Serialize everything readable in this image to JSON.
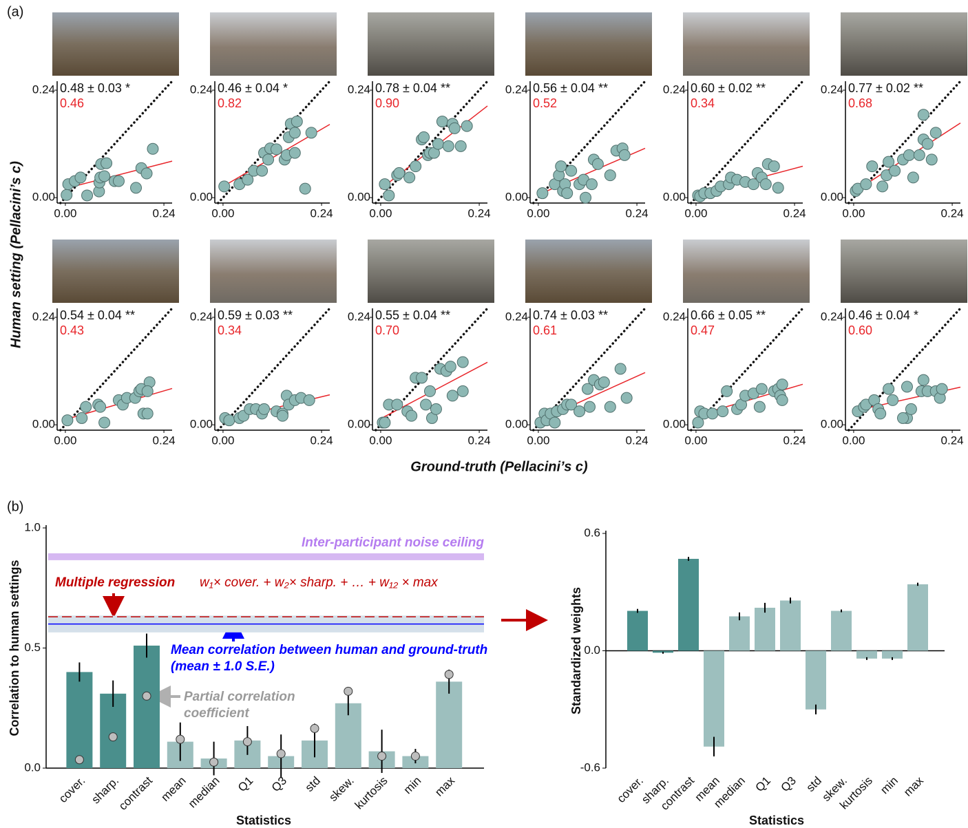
{
  "panel_labels": [
    "(a)",
    "(b)"
  ],
  "panel_a": {
    "ylabel": "Human setting (Pellacini’s c)",
    "xlabel": "Ground-truth (Pellacini’s c)"
  },
  "chart_data": [
    {
      "type": "scatter",
      "annotations": [
        "0.48 ± 0.03 *",
        "0.46"
      ],
      "color": "#8db8b4",
      "fit_color": "#e8252a",
      "x": [
        0.003,
        0.007,
        0.023,
        0.037,
        0.053,
        0.082,
        0.083,
        0.085,
        0.087,
        0.095,
        0.1,
        0.12,
        0.13,
        0.172,
        0.185,
        0.198,
        0.213
      ],
      "y": [
        0.006,
        0.03,
        0.037,
        0.045,
        0.005,
        0.014,
        0.034,
        0.045,
        0.075,
        0.048,
        0.077,
        0.037,
        0.037,
        0.022,
        0.066,
        0.054,
        0.109
      ],
      "xlim": [
        -0.02,
        0.26
      ],
      "ylim": [
        -0.012,
        0.26
      ],
      "xticks": [
        {
          "value": 0,
          "label": "0.00"
        },
        0.24
      ],
      "yticks": [
        {
          "value": 0,
          "label": "0.00"
        },
        0.24
      ]
    },
    {
      "type": "scatter",
      "annotations": [
        "0.46 ± 0.04 *",
        "0.82"
      ],
      "color": "#8db8b4",
      "fit_color": "#e8252a",
      "x": [
        0.003,
        0.04,
        0.06,
        0.075,
        0.095,
        0.1,
        0.11,
        0.115,
        0.13,
        0.15,
        0.155,
        0.16,
        0.165,
        0.175,
        0.175,
        0.18,
        0.2,
        0.215
      ],
      "y": [
        0.025,
        0.03,
        0.04,
        0.06,
        0.06,
        0.1,
        0.085,
        0.11,
        0.108,
        0.085,
        0.095,
        0.135,
        0.165,
        0.145,
        0.1,
        0.17,
        0.02,
        0.145
      ],
      "xlim": [
        -0.02,
        0.26
      ],
      "ylim": [
        -0.012,
        0.26
      ],
      "xticks": [
        {
          "value": 0,
          "label": "0.00"
        },
        0.24
      ],
      "yticks": [
        {
          "value": 0,
          "label": "0.00"
        },
        0.24
      ]
    },
    {
      "type": "scatter",
      "annotations": [
        "0.78 ± 0.04 **",
        "0.90"
      ],
      "color": "#8db8b4",
      "fit_color": "#e8252a",
      "x": [
        0.01,
        0.02,
        0.04,
        0.045,
        0.07,
        0.085,
        0.1,
        0.105,
        0.115,
        0.12,
        0.13,
        0.14,
        0.15,
        0.165,
        0.175,
        0.18,
        0.195,
        0.21
      ],
      "y": [
        0.03,
        0.005,
        0.05,
        0.055,
        0.045,
        0.07,
        0.13,
        0.135,
        0.095,
        0.1,
        0.1,
        0.12,
        0.17,
        0.115,
        0.165,
        0.155,
        0.115,
        0.16
      ],
      "xlim": [
        -0.02,
        0.26
      ],
      "ylim": [
        -0.012,
        0.26
      ],
      "xticks": [
        {
          "value": 0,
          "label": "0.00"
        },
        0.24
      ],
      "yticks": [
        {
          "value": 0,
          "label": "0.00"
        },
        0.24
      ]
    },
    {
      "type": "scatter",
      "annotations": [
        "0.56 ± 0.04 **",
        "0.52"
      ],
      "color": "#8db8b4",
      "fit_color": "#e8252a",
      "x": [
        0.01,
        0.04,
        0.05,
        0.055,
        0.06,
        0.065,
        0.07,
        0.08,
        0.1,
        0.11,
        0.115,
        0.13,
        0.135,
        0.145,
        0.175,
        0.19,
        0.205,
        0.21
      ],
      "y": [
        0.01,
        0.03,
        0.05,
        0.07,
        0.015,
        0.03,
        0.01,
        0.06,
        0.03,
        0.04,
        0.0,
        0.03,
        0.085,
        0.075,
        0.05,
        0.105,
        0.11,
        0.095
      ],
      "xlim": [
        -0.02,
        0.26
      ],
      "ylim": [
        -0.012,
        0.26
      ],
      "xticks": [
        {
          "value": 0,
          "label": "0.00"
        },
        0.24
      ],
      "yticks": [
        {
          "value": 0,
          "label": "0.00"
        },
        0.24
      ]
    },
    {
      "type": "scatter",
      "annotations": [
        "0.60 ± 0.02 **",
        "0.34"
      ],
      "color": "#8db8b4",
      "fit_color": "#e8252a",
      "x": [
        0.005,
        0.01,
        0.02,
        0.035,
        0.05,
        0.06,
        0.08,
        0.085,
        0.1,
        0.12,
        0.14,
        0.15,
        0.16,
        0.17,
        0.175,
        0.19,
        0.2
      ],
      "y": [
        0.005,
        0.003,
        0.01,
        0.01,
        0.015,
        0.025,
        0.03,
        0.045,
        0.04,
        0.035,
        0.03,
        0.055,
        0.045,
        0.03,
        0.075,
        0.07,
        0.022
      ],
      "xlim": [
        -0.02,
        0.26
      ],
      "ylim": [
        -0.012,
        0.26
      ],
      "xticks": [
        {
          "value": 0,
          "label": "0.00"
        },
        0.24
      ],
      "yticks": [
        {
          "value": 0,
          "label": "0.00"
        },
        0.24
      ]
    },
    {
      "type": "scatter",
      "annotations": [
        "0.77 ± 0.02 **",
        "0.68"
      ],
      "color": "#8db8b4",
      "fit_color": "#e8252a",
      "x": [
        0.005,
        0.01,
        0.03,
        0.045,
        0.07,
        0.08,
        0.085,
        0.1,
        0.12,
        0.135,
        0.145,
        0.16,
        0.17,
        0.17,
        0.18,
        0.2,
        0.19
      ],
      "y": [
        0.015,
        0.02,
        0.03,
        0.07,
        0.025,
        0.05,
        0.08,
        0.06,
        0.085,
        0.095,
        0.045,
        0.095,
        0.13,
        0.185,
        0.12,
        0.145,
        0.085
      ],
      "xlim": [
        -0.02,
        0.26
      ],
      "ylim": [
        -0.012,
        0.26
      ],
      "xticks": [
        {
          "value": 0,
          "label": "0.00"
        },
        0.24
      ],
      "yticks": [
        {
          "value": 0,
          "label": "0.00"
        },
        0.24
      ]
    },
    {
      "type": "scatter",
      "annotations": [
        "0.54 ± 0.04 **",
        "0.43"
      ],
      "color": "#8db8b4",
      "fit_color": "#e8252a",
      "x": [
        0.005,
        0.04,
        0.05,
        0.08,
        0.085,
        0.095,
        0.13,
        0.14,
        0.15,
        0.17,
        0.18,
        0.185,
        0.19,
        0.2,
        0.205,
        0.2
      ],
      "y": [
        0.01,
        0.015,
        0.04,
        0.045,
        0.04,
        0.005,
        0.055,
        0.045,
        0.06,
        0.06,
        0.075,
        0.08,
        0.025,
        0.025,
        0.095,
        0.075
      ],
      "xlim": [
        -0.02,
        0.26
      ],
      "ylim": [
        -0.012,
        0.26
      ],
      "xticks": [
        {
          "value": 0,
          "label": "0.00"
        },
        0.24
      ],
      "yticks": [
        {
          "value": 0,
          "label": "0.00"
        },
        0.24
      ]
    },
    {
      "type": "scatter",
      "annotations": [
        "0.59 ± 0.03 **",
        "0.34"
      ],
      "color": "#8db8b4",
      "fit_color": "#e8252a",
      "x": [
        0.005,
        0.015,
        0.04,
        0.05,
        0.065,
        0.08,
        0.095,
        0.1,
        0.13,
        0.145,
        0.155,
        0.16,
        0.175,
        0.19,
        0.21,
        0.145
      ],
      "y": [
        0.015,
        0.01,
        0.015,
        0.02,
        0.035,
        0.035,
        0.025,
        0.035,
        0.03,
        0.025,
        0.065,
        0.045,
        0.055,
        0.06,
        0.055,
        0.02
      ],
      "xlim": [
        -0.02,
        0.26
      ],
      "ylim": [
        -0.012,
        0.26
      ],
      "xticks": [
        {
          "value": 0,
          "label": "0.00"
        },
        0.24
      ],
      "yticks": [
        {
          "value": 0,
          "label": "0.00"
        },
        0.24
      ]
    },
    {
      "type": "scatter",
      "annotations": [
        "0.55 ± 0.04 **",
        "0.70"
      ],
      "color": "#8db8b4",
      "fit_color": "#e8252a",
      "x": [
        0.005,
        0.01,
        0.02,
        0.04,
        0.065,
        0.075,
        0.085,
        0.1,
        0.11,
        0.12,
        0.125,
        0.135,
        0.145,
        0.16,
        0.17,
        0.175,
        0.2,
        0.2
      ],
      "y": [
        0.005,
        0.005,
        0.045,
        0.045,
        0.03,
        0.02,
        0.105,
        0.105,
        0.045,
        0.075,
        0.015,
        0.035,
        0.125,
        0.12,
        0.13,
        0.065,
        0.075,
        0.14
      ],
      "xlim": [
        -0.02,
        0.26
      ],
      "ylim": [
        -0.012,
        0.26
      ],
      "xticks": [
        {
          "value": 0,
          "label": "0.00"
        },
        0.24
      ],
      "yticks": [
        {
          "value": 0,
          "label": "0.00"
        },
        0.24
      ]
    },
    {
      "type": "scatter",
      "annotations": [
        "0.74 ± 0.03 **",
        "0.61"
      ],
      "color": "#8db8b4",
      "fit_color": "#e8252a",
      "x": [
        0.005,
        0.015,
        0.02,
        0.03,
        0.04,
        0.045,
        0.06,
        0.07,
        0.08,
        0.1,
        0.12,
        0.125,
        0.135,
        0.15,
        0.16,
        0.175,
        0.2,
        0.215
      ],
      "y": [
        0.005,
        0.025,
        0.01,
        0.025,
        0.005,
        0.03,
        0.035,
        0.045,
        0.045,
        0.03,
        0.08,
        0.04,
        0.1,
        0.09,
        0.095,
        0.04,
        0.125,
        0.06
      ],
      "xlim": [
        -0.02,
        0.26
      ],
      "ylim": [
        -0.012,
        0.26
      ],
      "xticks": [
        {
          "value": 0,
          "label": "0.00"
        },
        0.24
      ],
      "yticks": [
        {
          "value": 0,
          "label": "0.00"
        },
        0.24
      ]
    },
    {
      "type": "scatter",
      "annotations": [
        "0.66 ± 0.05 **",
        "0.47"
      ],
      "color": "#8db8b4",
      "fit_color": "#e8252a",
      "x": [
        0.005,
        0.01,
        0.02,
        0.04,
        0.065,
        0.075,
        0.1,
        0.11,
        0.12,
        0.14,
        0.155,
        0.16,
        0.19,
        0.2,
        0.205,
        0.21,
        0.21
      ],
      "y": [
        0.005,
        0.03,
        0.025,
        0.025,
        0.03,
        0.075,
        0.035,
        0.045,
        0.065,
        0.07,
        0.04,
        0.08,
        0.075,
        0.08,
        0.065,
        0.09,
        0.055
      ],
      "xlim": [
        -0.02,
        0.26
      ],
      "ylim": [
        -0.012,
        0.26
      ],
      "xticks": [
        {
          "value": 0,
          "label": "0.00"
        },
        0.24
      ],
      "yticks": [
        {
          "value": 0,
          "label": "0.00"
        },
        0.24
      ]
    },
    {
      "type": "scatter",
      "annotations": [
        "0.46 ± 0.04 *",
        "0.60"
      ],
      "color": "#8db8b4",
      "fit_color": "#e8252a",
      "x": [
        0.01,
        0.025,
        0.03,
        0.05,
        0.06,
        0.065,
        0.085,
        0.095,
        0.13,
        0.13,
        0.14,
        0.165,
        0.17,
        0.18,
        0.2,
        0.21,
        0.215,
        0.12
      ],
      "y": [
        0.03,
        0.04,
        0.045,
        0.055,
        0.035,
        0.025,
        0.08,
        0.055,
        0.085,
        0.015,
        0.035,
        0.075,
        0.1,
        0.075,
        0.075,
        0.06,
        0.08,
        0.015
      ],
      "xlim": [
        -0.02,
        0.26
      ],
      "ylim": [
        -0.012,
        0.26
      ],
      "xticks": [
        {
          "value": 0,
          "label": "0.00"
        },
        0.24
      ],
      "yticks": [
        {
          "value": 0,
          "label": "0.00"
        },
        0.24
      ]
    },
    {
      "type": "bar",
      "xlabel": "Statistics",
      "ylabel": "Correlation to human settings",
      "categories": [
        "cover.",
        "sharp.",
        "contrast",
        "mean",
        "median",
        "Q1",
        "Q3",
        "std",
        "skew.",
        "kurtosis",
        "min",
        "max"
      ],
      "values": [
        0.4,
        0.31,
        0.51,
        0.11,
        0.04,
        0.115,
        0.05,
        0.115,
        0.27,
        0.07,
        0.05,
        0.36
      ],
      "errors": [
        0.04,
        0.055,
        0.05,
        0.08,
        0.07,
        0.06,
        0.09,
        0.07,
        0.05,
        0.09,
        0.03,
        0.05
      ],
      "partial": [
        0.035,
        0.13,
        0.3,
        0.12,
        0.025,
        0.11,
        0.06,
        0.165,
        0.32,
        0.05,
        0.05,
        0.39
      ],
      "colors": [
        "#4a8f8c",
        "#4a8f8c",
        "#4a8f8c",
        "#9dbfbe",
        "#9dbfbe",
        "#9dbfbe",
        "#9dbfbe",
        "#9dbfbe",
        "#9dbfbe",
        "#9dbfbe",
        "#9dbfbe",
        "#9dbfbe"
      ],
      "ylim": [
        0,
        1
      ],
      "yticks": [
        {
          "value": 0,
          "label": "0.0"
        },
        0.5,
        {
          "value": 1,
          "label": "1.0"
        }
      ],
      "reference_lines": [
        {
          "name": "Inter-participant noise ceiling",
          "value": 0.88,
          "color": "#d6b8f2",
          "text_color": "#b57cf0"
        },
        {
          "name": "Multiple regression",
          "value": 0.63,
          "color": "#c00000",
          "text_color": "#c00000"
        },
        {
          "name": "Mean correlation between human and ground-truth",
          "value": 0.6,
          "error": 0.035,
          "color": "#0000ff",
          "text_color": "#0000ff"
        }
      ],
      "formula": "w₁× cover. + w₂× sharp. + … + w₁₂ × max",
      "se_note": "(mean ± 1.0 S.E.)",
      "partial_label": [
        "Partial correlation",
        "coefficient"
      ]
    },
    {
      "type": "bar",
      "xlabel": "Statistics",
      "ylabel": "Standardized weights",
      "categories": [
        "cover.",
        "sharp.",
        "contrast",
        "mean",
        "median",
        "Q1",
        "Q3",
        "std",
        "skew.",
        "kurtosis",
        "min",
        "max"
      ],
      "values": [
        0.204,
        -0.01,
        0.47,
        -0.49,
        0.176,
        0.22,
        0.257,
        -0.3,
        0.204,
        -0.04,
        -0.04,
        0.34
      ],
      "errors": [
        0.01,
        0.005,
        0.01,
        0.05,
        0.02,
        0.025,
        0.015,
        0.025,
        0.007,
        0.007,
        0.007,
        0.008
      ],
      "colors": [
        "#4a8f8c",
        "#4a8f8c",
        "#4a8f8c",
        "#9dbfbe",
        "#9dbfbe",
        "#9dbfbe",
        "#9dbfbe",
        "#9dbfbe",
        "#9dbfbe",
        "#9dbfbe",
        "#9dbfbe",
        "#9dbfbe"
      ],
      "ylim": [
        -0.6,
        0.6
      ],
      "yticks": [
        -0.6,
        {
          "value": 0,
          "label": "0.0"
        },
        0.6
      ]
    }
  ]
}
